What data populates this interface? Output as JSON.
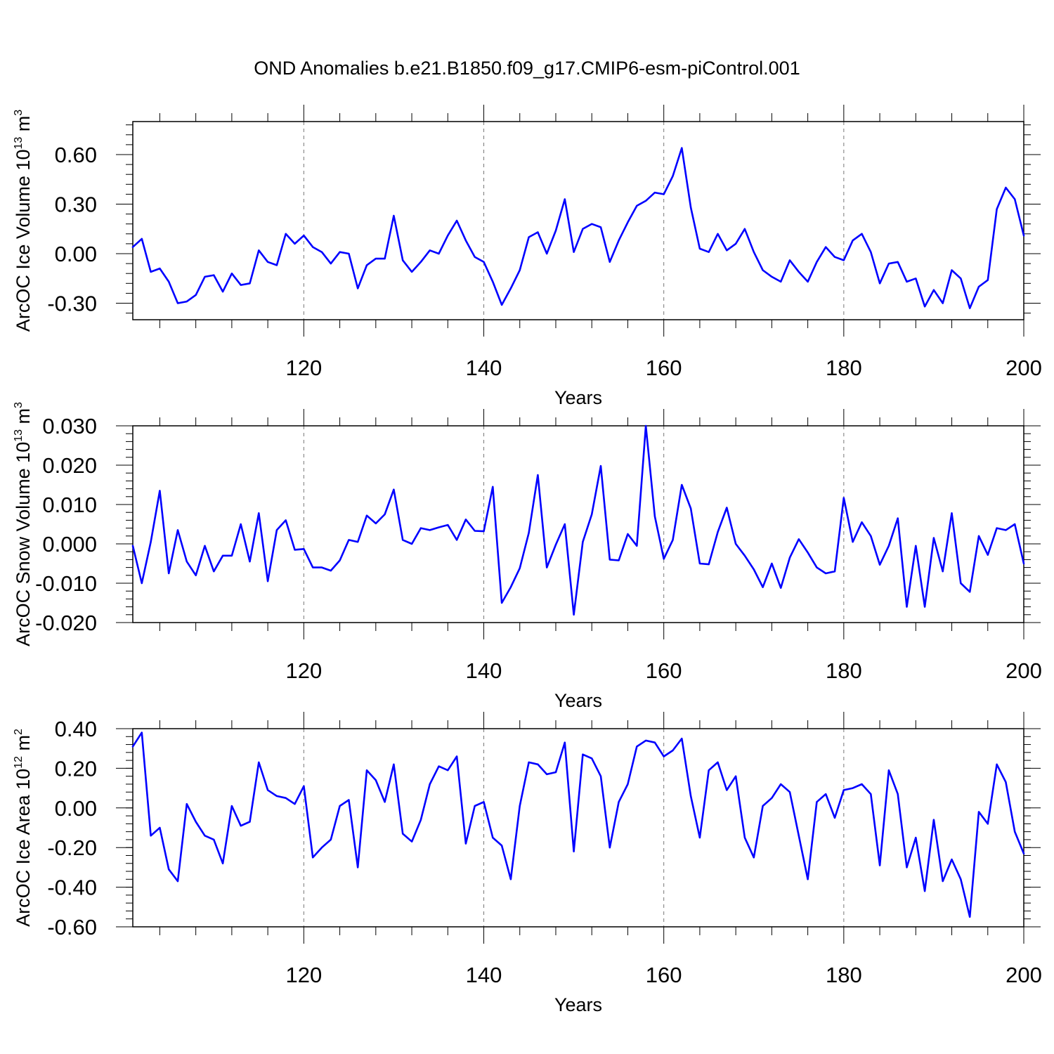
{
  "title": "OND Anomalies b.e21.B1850.f09_g17.CMIP6-esm-piControl.001",
  "line_color": "#0000ff",
  "chart_data": [
    {
      "type": "line",
      "ylabel": "ArcOC Ice Volume 10",
      "ylabel_exp": "13",
      "ylabel_unit": " m",
      "ylabel_unit_exp": "3",
      "xlabel": "Years",
      "xlim": [
        101,
        200
      ],
      "ylim": [
        -0.4,
        0.8
      ],
      "yticks": [
        -0.3,
        0.0,
        0.3,
        0.6
      ],
      "ytick_labels": [
        "-0.30",
        "0.00",
        "0.30",
        "0.60"
      ],
      "yminor_step": 0.06,
      "xticks": [
        120,
        140,
        160,
        180,
        200
      ],
      "xtick_labels": [
        "120",
        "140",
        "160",
        "180",
        "200"
      ],
      "gridlines_x": [
        120,
        140,
        160,
        180
      ],
      "series": [
        {
          "name": "Ice Volume",
          "start_year": 101,
          "values": [
            0.04,
            0.09,
            -0.11,
            -0.09,
            -0.17,
            -0.3,
            -0.29,
            -0.25,
            -0.14,
            -0.13,
            -0.23,
            -0.12,
            -0.19,
            -0.18,
            0.02,
            -0.05,
            -0.07,
            0.12,
            0.06,
            0.11,
            0.04,
            0.01,
            -0.06,
            0.01,
            0.0,
            -0.21,
            -0.07,
            -0.03,
            -0.03,
            0.23,
            -0.04,
            -0.11,
            -0.05,
            0.02,
            0.0,
            0.11,
            0.2,
            0.08,
            -0.02,
            -0.05,
            -0.17,
            -0.31,
            -0.21,
            -0.1,
            0.1,
            0.13,
            0.0,
            0.14,
            0.33,
            0.01,
            0.15,
            0.18,
            0.16,
            -0.05,
            0.08,
            0.19,
            0.29,
            0.32,
            0.37,
            0.36,
            0.47,
            0.64,
            0.28,
            0.03,
            0.01,
            0.12,
            0.02,
            0.06,
            0.15,
            0.01,
            -0.1,
            -0.14,
            -0.17,
            -0.04,
            -0.11,
            -0.17,
            -0.05,
            0.04,
            -0.02,
            -0.04,
            0.08,
            0.12,
            0.01,
            -0.18,
            -0.06,
            -0.05,
            -0.17,
            -0.15,
            -0.32,
            -0.22,
            -0.3,
            -0.1,
            -0.15,
            -0.33,
            -0.2,
            -0.16,
            0.27,
            0.4,
            0.33,
            0.11
          ]
        }
      ]
    },
    {
      "type": "line",
      "ylabel": "ArcOC Snow Volume 10",
      "ylabel_exp": "13",
      "ylabel_unit": " m",
      "ylabel_unit_exp": "3",
      "xlabel": "Years",
      "xlim": [
        101,
        200
      ],
      "ylim": [
        -0.02,
        0.03
      ],
      "yticks": [
        -0.02,
        -0.01,
        0.0,
        0.01,
        0.02,
        0.03
      ],
      "ytick_labels": [
        "-0.020",
        "-0.010",
        "0.000",
        "0.010",
        "0.020",
        "0.030"
      ],
      "yminor_step": 0.002,
      "xticks": [
        120,
        140,
        160,
        180,
        200
      ],
      "xtick_labels": [
        "120",
        "140",
        "160",
        "180",
        "200"
      ],
      "gridlines_x": [
        120,
        140,
        160,
        180
      ],
      "series": [
        {
          "name": "Snow Volume",
          "start_year": 101,
          "values": [
            -0.0005,
            -0.01,
            0.0005,
            0.0135,
            -0.0075,
            0.0035,
            -0.0045,
            -0.008,
            -0.0005,
            -0.007,
            -0.003,
            -0.003,
            0.005,
            -0.0045,
            0.0078,
            -0.0095,
            0.0035,
            0.006,
            -0.0015,
            -0.0013,
            -0.006,
            -0.006,
            -0.0068,
            -0.0042,
            0.001,
            0.0005,
            0.0072,
            0.0052,
            0.0075,
            0.0138,
            0.001,
            0.0,
            0.004,
            0.0035,
            0.0042,
            0.0048,
            0.001,
            0.0062,
            0.0033,
            0.0032,
            0.0145,
            -0.015,
            -0.011,
            -0.0062,
            0.0028,
            0.0175,
            -0.006,
            -0.0002,
            0.005,
            -0.018,
            0.0005,
            0.0075,
            0.0198,
            -0.004,
            -0.0042,
            0.0025,
            -0.0005,
            0.03,
            0.007,
            -0.0038,
            0.001,
            0.015,
            0.009,
            -0.005,
            -0.0052,
            0.003,
            0.0092,
            0.0,
            -0.003,
            -0.0065,
            -0.011,
            -0.005,
            -0.0112,
            -0.0035,
            0.0012,
            -0.0022,
            -0.006,
            -0.0075,
            -0.007,
            0.0117,
            0.0005,
            0.0055,
            0.002,
            -0.0053,
            -0.0005,
            0.0065,
            -0.016,
            -0.0005,
            -0.016,
            0.0015,
            -0.007,
            0.0078,
            -0.01,
            -0.0122,
            0.002,
            -0.0028,
            0.004,
            0.0035,
            0.005,
            -0.005
          ]
        }
      ]
    },
    {
      "type": "line",
      "ylabel": "ArcOC Ice Area 10",
      "ylabel_exp": "12",
      "ylabel_unit": " m",
      "ylabel_unit_exp": "2",
      "xlabel": "Years",
      "xlim": [
        101,
        200
      ],
      "ylim": [
        -0.6,
        0.4
      ],
      "yticks": [
        -0.6,
        -0.4,
        -0.2,
        0.0,
        0.2,
        0.4
      ],
      "ytick_labels": [
        "-0.60",
        "-0.40",
        "-0.20",
        "0.00",
        "0.20",
        "0.40"
      ],
      "yminor_step": 0.04,
      "xticks": [
        120,
        140,
        160,
        180,
        200
      ],
      "xtick_labels": [
        "120",
        "140",
        "160",
        "180",
        "200"
      ],
      "gridlines_x": [
        120,
        140,
        160,
        180
      ],
      "series": [
        {
          "name": "Ice Area",
          "start_year": 101,
          "values": [
            0.31,
            0.38,
            -0.14,
            -0.1,
            -0.31,
            -0.37,
            0.02,
            -0.07,
            -0.14,
            -0.16,
            -0.28,
            0.01,
            -0.09,
            -0.07,
            0.23,
            0.09,
            0.06,
            0.05,
            0.02,
            0.11,
            -0.25,
            -0.2,
            -0.16,
            0.01,
            0.04,
            -0.3,
            0.19,
            0.14,
            0.03,
            0.22,
            -0.13,
            -0.17,
            -0.06,
            0.12,
            0.21,
            0.19,
            0.26,
            -0.18,
            0.01,
            0.03,
            -0.15,
            -0.19,
            -0.36,
            0.01,
            0.23,
            0.22,
            0.17,
            0.18,
            0.33,
            -0.22,
            0.27,
            0.25,
            0.16,
            -0.2,
            0.03,
            0.12,
            0.31,
            0.34,
            0.33,
            0.26,
            0.29,
            0.35,
            0.06,
            -0.15,
            0.19,
            0.23,
            0.09,
            0.16,
            -0.15,
            -0.25,
            0.01,
            0.05,
            0.12,
            0.08,
            -0.14,
            -0.36,
            0.03,
            0.07,
            -0.05,
            0.09,
            0.1,
            0.12,
            0.07,
            -0.29,
            0.19,
            0.07,
            -0.3,
            -0.15,
            -0.42,
            -0.06,
            -0.37,
            -0.26,
            -0.36,
            -0.55,
            -0.02,
            -0.08,
            0.22,
            0.13,
            -0.12,
            -0.23
          ]
        }
      ]
    }
  ]
}
